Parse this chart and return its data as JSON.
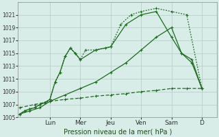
{
  "bg_color": "#d8ede8",
  "grid_color": "#b8cfc8",
  "line_color": "#1a6b1a",
  "title": "Pression niveau de la mer( hPa )",
  "ylim": [
    1005,
    1023
  ],
  "yticks": [
    1005,
    1007,
    1009,
    1011,
    1013,
    1015,
    1017,
    1019,
    1021
  ],
  "day_labels": [
    "Lun",
    "Mer",
    "Jeu",
    "Ven",
    "Sam",
    "D"
  ],
  "day_positions": [
    1.0,
    2.0,
    3.0,
    4.0,
    5.0,
    6.0
  ],
  "xlim": [
    -0.05,
    6.5
  ],
  "series": [
    {
      "x": [
        0,
        0.17,
        0.33,
        0.5,
        0.67,
        0.83,
        1.0,
        1.17,
        1.33,
        1.5,
        1.67,
        1.83,
        2.0,
        2.17,
        2.5,
        2.83,
        3.0,
        3.33,
        3.67,
        4.0,
        4.5,
        5.0,
        5.5,
        6.0
      ],
      "y": [
        1005.5,
        1006.0,
        1006.3,
        1006.5,
        1007.0,
        1007.3,
        1007.8,
        1010.5,
        1012.0,
        1014.5,
        1015.8,
        1015.0,
        1014.0,
        1015.5,
        1015.5,
        1015.8,
        1016.0,
        1019.5,
        1021.0,
        1021.5,
        1022.0,
        1021.5,
        1021.0,
        1009.5
      ],
      "style": "dotted",
      "marker": "+"
    },
    {
      "x": [
        0,
        0.17,
        0.33,
        0.5,
        0.67,
        0.83,
        1.0,
        1.17,
        1.33,
        1.5,
        1.67,
        1.83,
        2.0,
        2.5,
        3.0,
        3.5,
        4.0,
        4.5,
        5.0,
        5.33,
        5.67,
        6.0
      ],
      "y": [
        1005.5,
        1006.0,
        1006.3,
        1006.5,
        1007.0,
        1007.3,
        1007.8,
        1010.5,
        1012.0,
        1014.5,
        1015.8,
        1015.0,
        1014.0,
        1015.5,
        1016.0,
        1019.5,
        1021.0,
        1021.5,
        1017.5,
        1015.0,
        1013.5,
        1009.5
      ],
      "style": "solid",
      "marker": "+"
    },
    {
      "x": [
        0,
        0.33,
        0.67,
        1.0,
        1.5,
        2.0,
        2.5,
        3.0,
        3.5,
        4.0,
        4.5,
        5.0,
        5.33,
        5.67,
        6.0
      ],
      "y": [
        1005.5,
        1006.0,
        1006.5,
        1007.5,
        1008.5,
        1009.5,
        1010.5,
        1012.0,
        1013.5,
        1015.5,
        1017.5,
        1019.0,
        1015.0,
        1014.0,
        1009.5
      ],
      "style": "solid",
      "marker": "+"
    },
    {
      "x": [
        0,
        0.5,
        1.0,
        1.5,
        2.0,
        2.5,
        3.0,
        3.5,
        4.0,
        4.5,
        5.0,
        5.5,
        6.0
      ],
      "y": [
        1006.5,
        1007.0,
        1007.5,
        1007.8,
        1008.0,
        1008.3,
        1008.5,
        1008.7,
        1009.0,
        1009.2,
        1009.5,
        1009.5,
        1009.5
      ],
      "style": "dashed",
      "marker": "+"
    }
  ]
}
